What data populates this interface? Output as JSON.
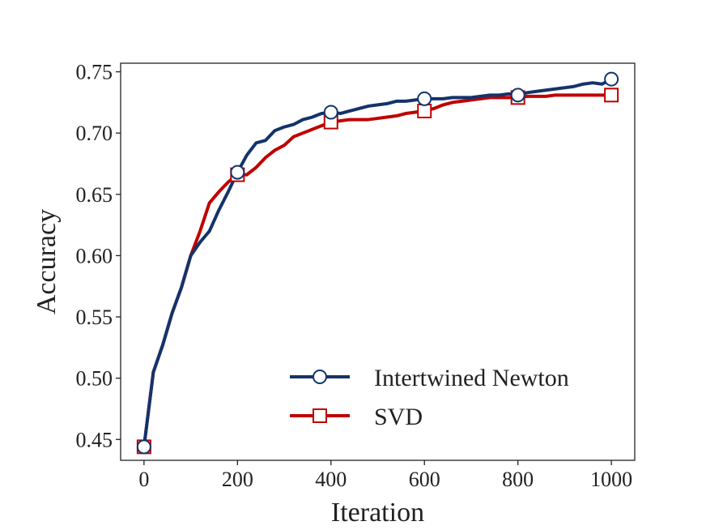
{
  "chart_data": {
    "type": "line",
    "title": "",
    "xlabel": "Iteration",
    "ylabel": "Accuracy",
    "xlim": [
      -50,
      1050
    ],
    "ylim": [
      0.433,
      0.757
    ],
    "xticks": [
      0,
      200,
      400,
      600,
      800,
      1000
    ],
    "xtick_labels": [
      "0",
      "200",
      "400",
      "600",
      "800",
      "1000"
    ],
    "yticks": [
      0.45,
      0.5,
      0.55,
      0.6,
      0.65,
      0.7,
      0.75
    ],
    "ytick_labels": [
      "0.45",
      "0.50",
      "0.55",
      "0.60",
      "0.65",
      "0.70",
      "0.75"
    ],
    "grid": false,
    "legend_position": "lower-right",
    "series": [
      {
        "name": "Intertwined Newton",
        "color": "#14336b",
        "marker": "circle",
        "marker_x": [
          0,
          200,
          400,
          600,
          800,
          1000
        ],
        "x": [
          0,
          20,
          40,
          60,
          80,
          100,
          120,
          140,
          160,
          180,
          200,
          220,
          240,
          260,
          280,
          300,
          320,
          340,
          360,
          380,
          400,
          420,
          440,
          460,
          480,
          500,
          520,
          540,
          560,
          580,
          600,
          620,
          640,
          660,
          680,
          700,
          720,
          740,
          760,
          780,
          800,
          820,
          840,
          860,
          880,
          900,
          920,
          940,
          960,
          980,
          1000
        ],
        "y": [
          0.444,
          0.505,
          0.527,
          0.553,
          0.574,
          0.6,
          0.611,
          0.62,
          0.637,
          0.652,
          0.668,
          0.682,
          0.692,
          0.694,
          0.702,
          0.705,
          0.707,
          0.711,
          0.713,
          0.716,
          0.717,
          0.716,
          0.718,
          0.72,
          0.722,
          0.723,
          0.724,
          0.726,
          0.726,
          0.727,
          0.728,
          0.728,
          0.728,
          0.729,
          0.729,
          0.729,
          0.73,
          0.731,
          0.731,
          0.732,
          0.731,
          0.733,
          0.734,
          0.735,
          0.736,
          0.737,
          0.738,
          0.74,
          0.741,
          0.74,
          0.744
        ]
      },
      {
        "name": "SVD",
        "color": "#c00000",
        "marker": "square",
        "marker_x": [
          0,
          200,
          400,
          600,
          800,
          1000
        ],
        "x": [
          0,
          20,
          40,
          60,
          80,
          100,
          120,
          140,
          160,
          180,
          200,
          220,
          240,
          260,
          280,
          300,
          320,
          340,
          360,
          380,
          400,
          420,
          440,
          460,
          480,
          500,
          520,
          540,
          560,
          580,
          600,
          620,
          640,
          660,
          680,
          700,
          720,
          740,
          760,
          780,
          800,
          820,
          840,
          860,
          880,
          900,
          920,
          940,
          960,
          980,
          1000
        ],
        "y": [
          0.444,
          0.505,
          0.527,
          0.553,
          0.574,
          0.6,
          0.62,
          0.643,
          0.652,
          0.66,
          0.666,
          0.666,
          0.672,
          0.68,
          0.686,
          0.69,
          0.697,
          0.7,
          0.703,
          0.706,
          0.709,
          0.71,
          0.711,
          0.711,
          0.711,
          0.712,
          0.713,
          0.714,
          0.716,
          0.717,
          0.718,
          0.72,
          0.723,
          0.725,
          0.726,
          0.727,
          0.728,
          0.729,
          0.729,
          0.729,
          0.729,
          0.73,
          0.73,
          0.73,
          0.731,
          0.731,
          0.731,
          0.731,
          0.731,
          0.731,
          0.731
        ]
      }
    ]
  }
}
